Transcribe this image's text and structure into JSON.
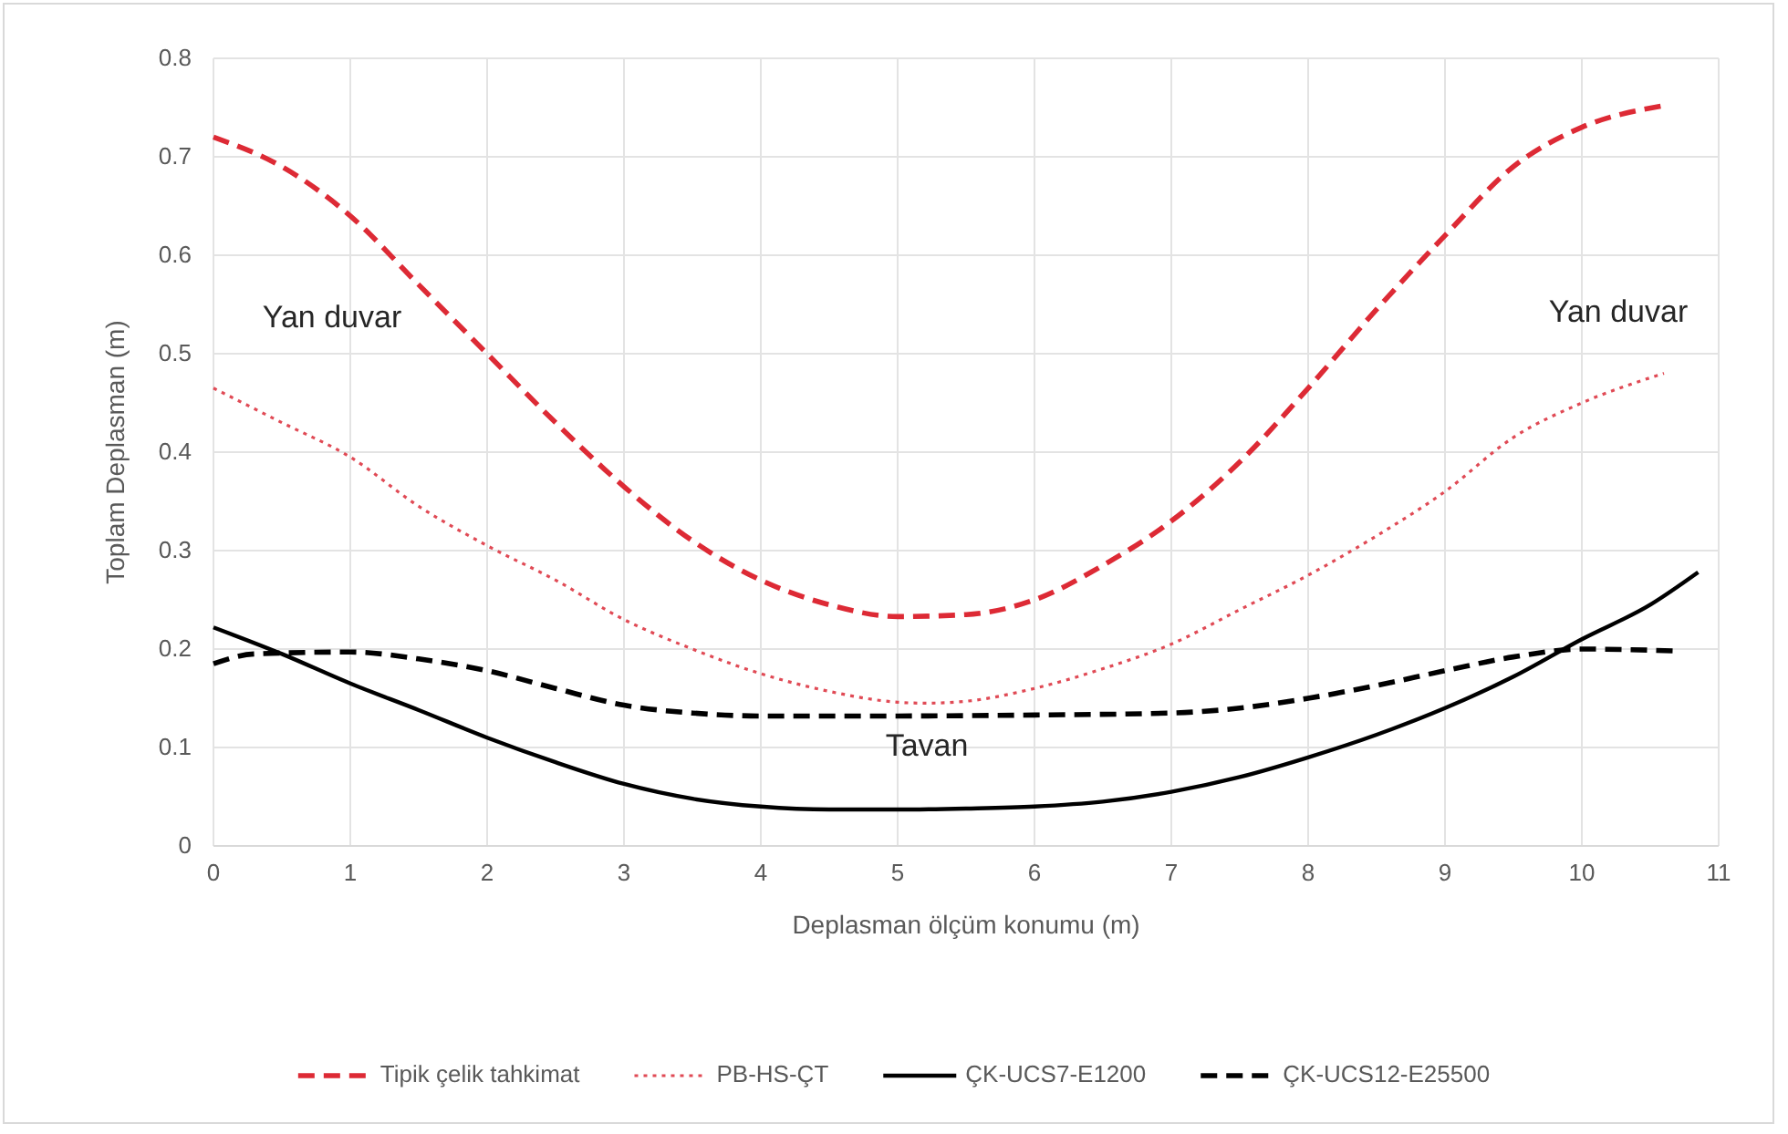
{
  "chart_data": {
    "type": "line",
    "xlabel": "Deplasman ölçüm konumu (m)",
    "ylabel": "Toplam Deplasman (m)",
    "xlim": [
      0,
      11
    ],
    "xticks": [
      0,
      1,
      2,
      3,
      4,
      5,
      6,
      7,
      8,
      9,
      10,
      11
    ],
    "ylim": [
      0,
      0.8
    ],
    "yticks": [
      0,
      0.1,
      0.2,
      0.3,
      0.4,
      0.5,
      0.6,
      0.7,
      0.8
    ],
    "grid": true,
    "legend": "bottom",
    "marker": "none",
    "annotations": [
      "Yan duvar",
      "Yan duvar",
      "Tavan"
    ],
    "series": [
      {
        "name": "Tipik çelik tahkimat",
        "color": "#dd2a35",
        "line_style": "dashed",
        "x": [
          0,
          0.5,
          1,
          1.5,
          2,
          2.5,
          3,
          3.5,
          4,
          4.5,
          5,
          5.5,
          6,
          6.5,
          7,
          7.5,
          8,
          8.5,
          9,
          9.5,
          10,
          10.6
        ],
        "values": [
          0.72,
          0.69,
          0.64,
          0.57,
          0.5,
          0.43,
          0.365,
          0.31,
          0.27,
          0.245,
          0.233,
          0.235,
          0.25,
          0.285,
          0.33,
          0.39,
          0.465,
          0.545,
          0.62,
          0.69,
          0.73,
          0.752
        ]
      },
      {
        "name": "PB-HS-ÇT",
        "color": "#e04a55",
        "line_style": "dotted",
        "x": [
          0,
          0.5,
          1,
          1.5,
          2,
          2.5,
          3,
          3.5,
          4,
          4.5,
          5,
          5.2,
          5.5,
          6,
          6.5,
          7,
          7.5,
          8,
          8.5,
          9,
          9.5,
          10,
          10.6
        ],
        "values": [
          0.465,
          0.43,
          0.395,
          0.345,
          0.305,
          0.27,
          0.23,
          0.2,
          0.175,
          0.157,
          0.146,
          0.145,
          0.147,
          0.16,
          0.18,
          0.205,
          0.24,
          0.275,
          0.315,
          0.36,
          0.415,
          0.45,
          0.48
        ]
      },
      {
        "name": "ÇK-UCS7-E1200",
        "color": "#000000",
        "line_style": "solid",
        "x": [
          0,
          0.5,
          1,
          1.5,
          2,
          2.5,
          3,
          3.5,
          4,
          4.5,
          5,
          5.5,
          6,
          6.5,
          7,
          7.5,
          8,
          8.5,
          9,
          9.5,
          10,
          10.5,
          10.85
        ],
        "values": [
          0.222,
          0.195,
          0.165,
          0.138,
          0.11,
          0.085,
          0.063,
          0.048,
          0.04,
          0.037,
          0.037,
          0.038,
          0.04,
          0.045,
          0.055,
          0.07,
          0.09,
          0.113,
          0.14,
          0.172,
          0.21,
          0.245,
          0.278
        ]
      },
      {
        "name": "ÇK-UCS12-E25500",
        "color": "#000000",
        "line_style": "dashed",
        "x": [
          0,
          0.3,
          1,
          1.5,
          2,
          2.5,
          3,
          3.5,
          4,
          5,
          6,
          7,
          7.5,
          8,
          8.5,
          9,
          9.5,
          10,
          10.7
        ],
        "values": [
          0.185,
          0.195,
          0.197,
          0.19,
          0.178,
          0.16,
          0.143,
          0.135,
          0.132,
          0.132,
          0.133,
          0.135,
          0.14,
          0.15,
          0.163,
          0.178,
          0.192,
          0.2,
          0.198
        ]
      }
    ]
  }
}
